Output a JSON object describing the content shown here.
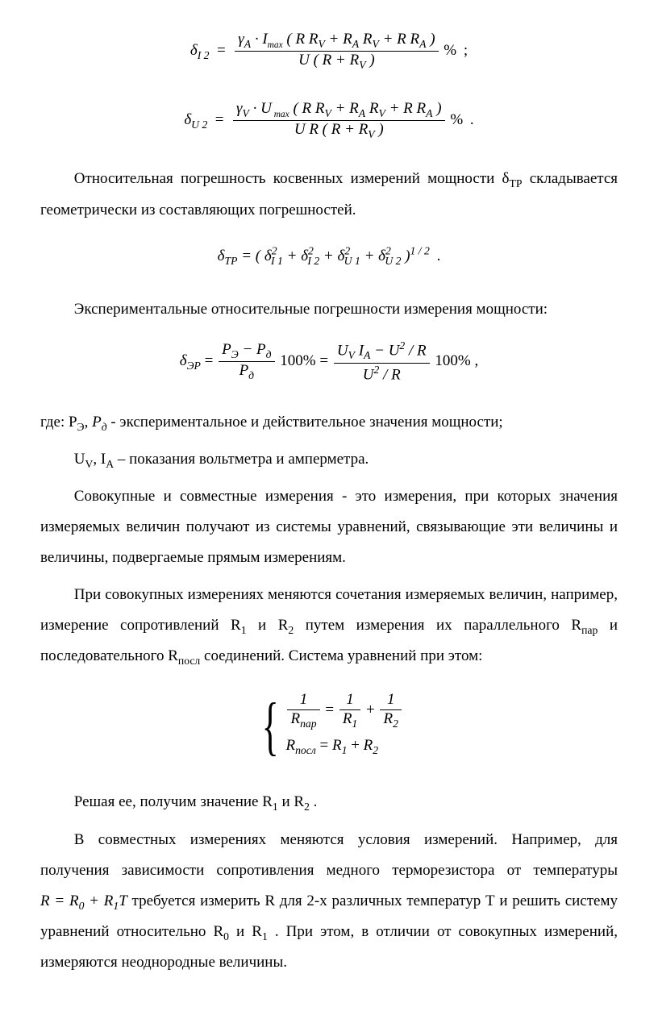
{
  "eq1": {
    "lhs_delta": "δ",
    "lhs_sub": "I 2",
    "num_gamma": "γ",
    "num_gamma_sub": "A",
    "num_dot": " · ",
    "num_I": "I",
    "num_max": "max",
    "num_paren": " ( R R",
    "num_sub1": "V",
    "num_plus1": " + R",
    "num_sub2": "A",
    "num_R": " R",
    "num_sub3": "V",
    "num_plus2": " + R R",
    "num_sub4": "A",
    "num_close": " )",
    "den": "U ( R + R",
    "den_sub": "V",
    "den_close": " )",
    "pct": " %",
    "tail": "  ;"
  },
  "eq2": {
    "lhs_delta": "δ",
    "lhs_sub": "U 2",
    "num_gamma": "γ",
    "num_gamma_sub": "V",
    "num_dot": " · ",
    "num_U": "U",
    "num_max": " max",
    "num_paren": " ( R R",
    "num_sub1": "V",
    "num_plus1": " + R",
    "num_sub2": "A",
    "num_R": " R",
    "num_sub3": "V",
    "num_plus2": " + R R",
    "num_sub4": "A",
    "num_close": " )",
    "den": "U R ( R + R",
    "den_sub": "V",
    "den_close": " )",
    "pct": " %",
    "tail": "  ."
  },
  "p1a": "Относительная погрешность косвенных измерений мощности δ",
  "p1a_sub": "ТР",
  "p1b": " складывается геометрически из составляющих погрешностей.",
  "eq3": {
    "lhs": "δ",
    "lhs_sub": "ТР",
    "eq": " = ( ",
    "t1": "δ",
    "t1_sup": "2",
    "t1_sub": "I 1",
    "plus1": " + ",
    "t2": "δ",
    "t2_sup": "2",
    "t2_sub": "I 2",
    "plus2": " + ",
    "t3": "δ",
    "t3_sup": "2",
    "t3_sub": "U 1",
    "plus3": " + ",
    "t4": "δ",
    "t4_sup": "2",
    "t4_sub": "U 2",
    "close": " )",
    "root": "1 / 2",
    "tail": "  ."
  },
  "p2": "Экспериментальные относительные погрешности измерения мощности:",
  "eq4": {
    "lhs": "δ",
    "lhs_sub": "ЭР",
    "eq": " = ",
    "f1_num_a": "P",
    "f1_num_a_sub": "Э",
    "f1_num_m": " − ",
    "f1_num_b": "P",
    "f1_num_b_sub": "д",
    "f1_den": "P",
    "f1_den_sub": "д",
    "mid1": " 100% = ",
    "f2_num_a": "U",
    "f2_num_a_sub": "V",
    "f2_num_b": " I",
    "f2_num_b_sub": "A",
    "f2_num_m": " − U",
    "f2_num_sup": "2",
    "f2_num_tail": " / R",
    "f2_den_a": "U",
    "f2_den_sup": "2",
    "f2_den_tail": " / R",
    "mid2": " 100% ,"
  },
  "p3a": "где: Р",
  "p3a_sub": "Э",
  "p3b": ", ",
  "p3c": "P",
  "p3c_sub": "д",
  "p3d": " - экспериментальное и действительное значения мощности;",
  "p4a": "U",
  "p4a_sub": "V",
  "p4b": ", I",
  "p4b_sub": "A",
  "p4c": " – показания вольтметра и амперметра.",
  "p5": "Совокупные и совместные измерения - это измерения, при которых значения измеряемых величин получают из системы уравнений, связывающие эти величины и величины, подвергаемые прямым измерениям.",
  "p6a": "При совокупных измерениях меняются сочетания измеряемых величин, например, измерение сопротивлений R",
  "p6a_sub": "1",
  "p6b": "   и  R",
  "p6b_sub": "2",
  "p6c": "   путем измерения их параллельного R",
  "p6c_sub": "пар",
  "p6d": " и последовательного R",
  "p6d_sub": "посл",
  "p6e": " соединений. Система уравнений при этом:",
  "sys": {
    "row1_l_num": "1",
    "row1_l_den_a": "R",
    "row1_l_den_sub": "пар",
    "row1_eq": " = ",
    "row1_r1_num": "1",
    "row1_r1_den": "R",
    "row1_r1_den_sub": "1",
    "row1_plus": " + ",
    "row1_r2_num": "1",
    "row1_r2_den": "R",
    "row1_r2_den_sub": "2",
    "row2_a": "R",
    "row2_a_sub": "посл",
    "row2_eq": " = ",
    "row2_b": "R",
    "row2_b_sub": "1",
    "row2_plus": " + ",
    "row2_c": "R",
    "row2_c_sub": "2"
  },
  "p7a": "Решая ее, получим значение R",
  "p7a_sub": "1",
  "p7b": " и R",
  "p7b_sub": "2",
  "p7c": " .",
  "p8a": "В совместных измерениях меняются условия измерений. Например, для получения зависимости сопротивления медного терморезистора от температуры    ",
  "eq_inline": {
    "a": "R = R",
    "a_sub": "0",
    "b": " + R",
    "b_sub": "1",
    "c": "T"
  },
  "p8b": " требуется измерить R для 2-х различных температур Т и решить систему уравнений относительно  R",
  "p8b_sub": "0",
  "p8c": " и R",
  "p8c_sub": "1",
  "p8d": " . При этом, в отличии от совокупных измерений, измеряются неоднородные величины."
}
